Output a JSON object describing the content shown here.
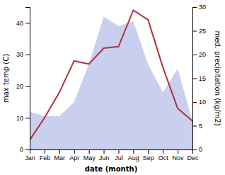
{
  "chart_data": {
    "type": "line",
    "xlabel": "date (month)",
    "ylabel": "max temp (C)",
    "y2label": "med. precipitation (kg/m2)",
    "categories": [
      "Jan",
      "Feb",
      "Mar",
      "Apr",
      "May",
      "Jun",
      "Jul",
      "Aug",
      "Sep",
      "Oct",
      "Nov",
      "Dec"
    ],
    "series": [
      {
        "type": "area",
        "axis": "y2",
        "color": "#c8d0ee",
        "values": [
          8.0,
          7.0,
          7.0,
          10.0,
          18.0,
          28.0,
          26.0,
          27.0,
          18.0,
          12.0,
          17.0,
          6.0
        ]
      },
      {
        "type": "line",
        "color": "#b03040",
        "values": [
          3.0,
          10.0,
          18.0,
          28.0,
          27.0,
          32.0,
          32.5,
          44.0,
          41.0,
          26.0,
          13.0,
          9.0
        ]
      }
    ],
    "ylim": [
      0,
      45
    ],
    "yticks": [
      0,
      10,
      20,
      30,
      40
    ],
    "y2lim": [
      0,
      30
    ],
    "y2ticks": [
      0,
      5,
      10,
      15,
      20,
      25,
      30
    ],
    "grid": false
  }
}
